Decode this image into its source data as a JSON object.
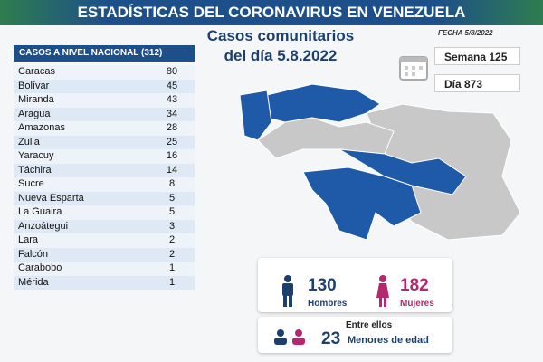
{
  "header": {
    "title": "ESTADÍSTICAS DEL CORONAVIRUS EN VENEZUELA",
    "date": "FECHA 5/8/2022"
  },
  "subtitle": {
    "line1": "Casos comunitarios",
    "line2": "del día 5.8.2022"
  },
  "counters": {
    "week": "Semana 125",
    "day": "Día 873"
  },
  "table": {
    "title": "CASOS A NIVEL NACIONAL",
    "total": "(312)",
    "rows": [
      [
        "Caracas",
        80
      ],
      [
        "Bolívar",
        45
      ],
      [
        "Miranda",
        43
      ],
      [
        "Aragua",
        34
      ],
      [
        "Amazonas",
        28
      ],
      [
        "Zulia",
        25
      ],
      [
        "Yaracuy",
        16
      ],
      [
        "Táchira",
        14
      ],
      [
        "Sucre",
        8
      ],
      [
        "Nueva Esparta",
        5
      ],
      [
        "La Guaira",
        5
      ],
      [
        "Anzoátegui",
        3
      ],
      [
        "Lara",
        2
      ],
      [
        "Falcón",
        2
      ],
      [
        "Carabobo",
        1
      ],
      [
        "Mérida",
        1
      ]
    ]
  },
  "gender": {
    "men": 130,
    "men_label": "Hombres",
    "women": 182,
    "women_label": "Mujeres"
  },
  "minors": {
    "intro": "Entre ellos",
    "count": 23,
    "label": "Menores de edad"
  }
}
